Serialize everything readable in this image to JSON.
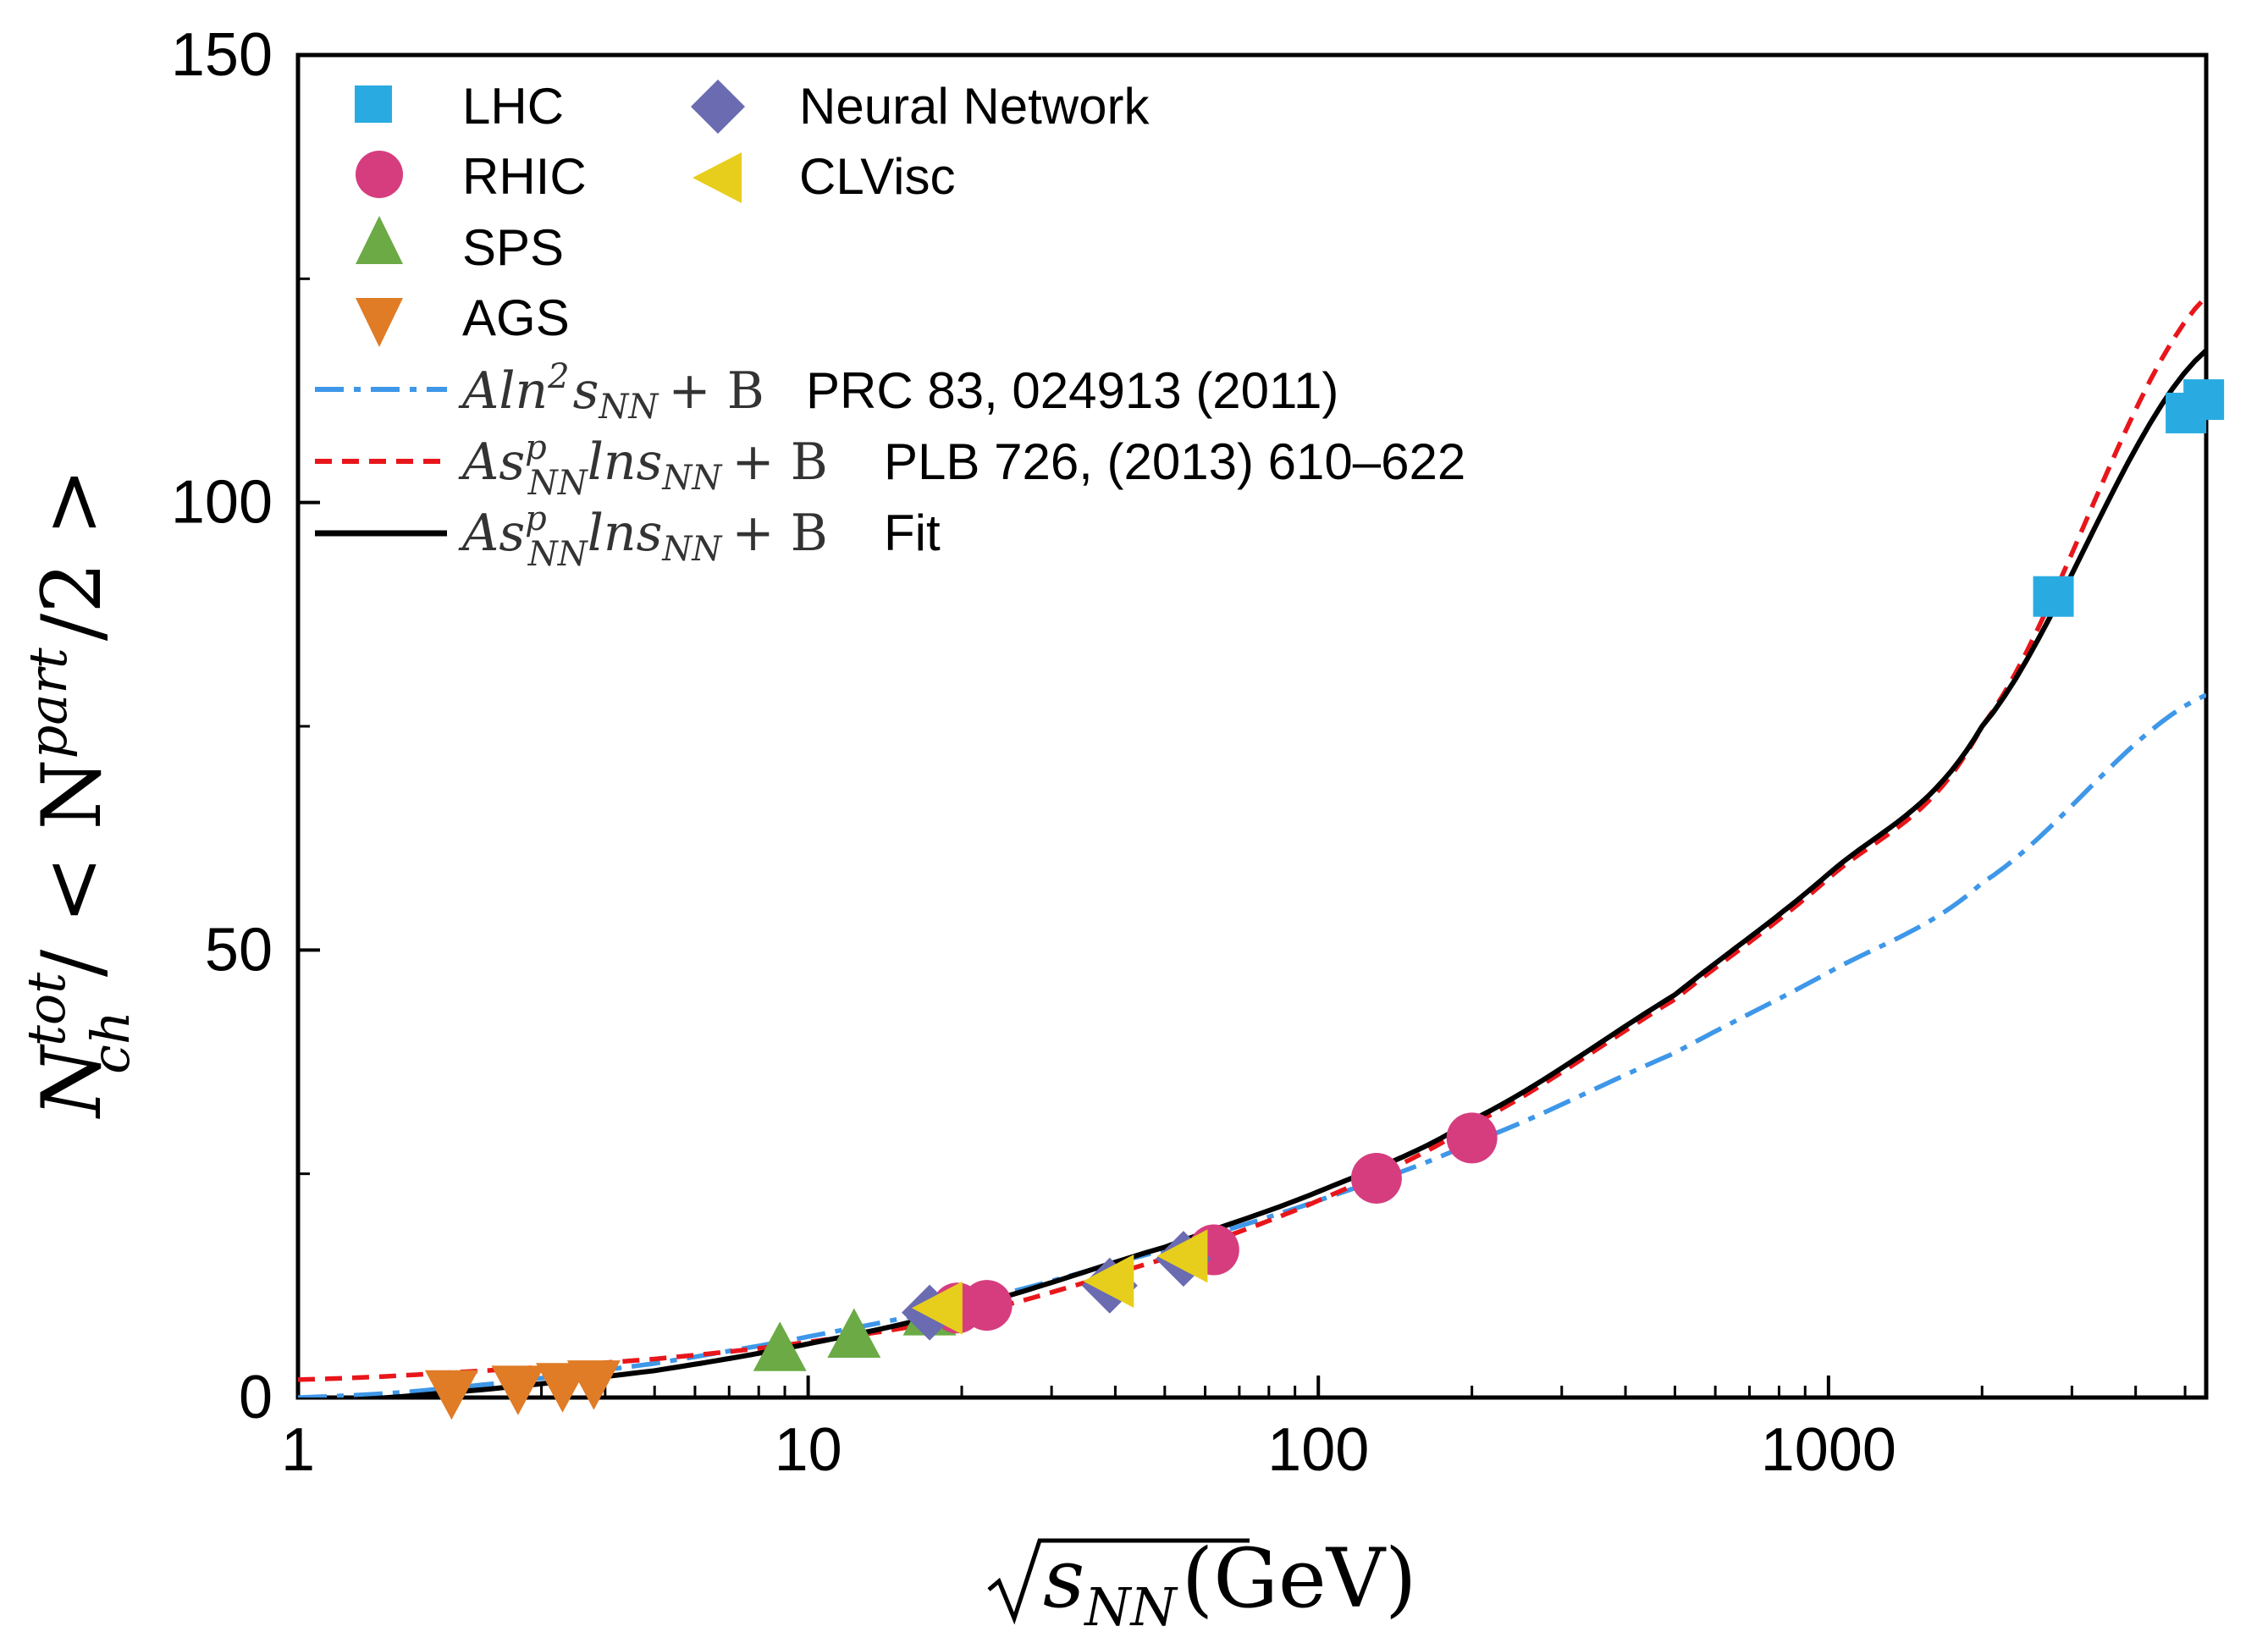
{
  "chart_data": {
    "type": "scatter",
    "x_axis": {
      "label_main": "s",
      "label_sub": "NN",
      "label_unit": "(GeV)",
      "scale": "log",
      "range": [
        1,
        5500
      ],
      "ticks": [
        1,
        10,
        100,
        1000
      ],
      "tick_labels": [
        "1",
        "10",
        "100",
        "1000"
      ]
    },
    "y_axis": {
      "label_N": "N",
      "label_sup": "tot",
      "label_sub": "ch",
      "label_rest": "/ < N",
      "label_sup2": "part",
      "label_tail": "/2 >",
      "range": [
        0,
        150
      ],
      "ticks": [
        0,
        50,
        100,
        150
      ],
      "tick_labels": [
        "0",
        "50",
        "100",
        "150"
      ]
    },
    "series": [
      {
        "name": "LHC",
        "marker": "square",
        "color": "#29ABE2",
        "points": [
          [
            2760,
            89.5
          ],
          [
            5020,
            110
          ],
          [
            5440,
            111.5
          ]
        ]
      },
      {
        "name": "RHIC",
        "marker": "circle",
        "color": "#D63D7E",
        "points": [
          [
            19.6,
            10
          ],
          [
            22.4,
            10.3
          ],
          [
            62.4,
            16.5
          ],
          [
            130,
            24.5
          ],
          [
            200,
            29
          ]
        ]
      },
      {
        "name": "SPS",
        "marker": "triangle-up",
        "color": "#6BAA45",
        "points": [
          [
            8.8,
            5.5
          ],
          [
            12.3,
            7
          ],
          [
            17.3,
            9.5
          ]
        ]
      },
      {
        "name": "AGS",
        "marker": "triangle-down",
        "color": "#E07B26",
        "points": [
          [
            2.0,
            0.5
          ],
          [
            2.7,
            1
          ],
          [
            3.3,
            1.3
          ],
          [
            3.8,
            1.6
          ]
        ]
      },
      {
        "name": "Neural Network",
        "marker": "diamond",
        "color": "#6A6BB1",
        "points": [
          [
            17.3,
            9.5
          ],
          [
            39,
            12.5
          ],
          [
            54.4,
            15.5
          ]
        ]
      },
      {
        "name": "CLVisc",
        "marker": "triangle-left",
        "color": "#E8CE1C",
        "points": [
          [
            18,
            10
          ],
          [
            39,
            13
          ],
          [
            54.4,
            15.8
          ]
        ]
      }
    ],
    "curves": [
      {
        "name": "Aln2",
        "style": "dash-dot",
        "color": "#3E97E8",
        "formula": "A ln^2 s + B",
        "x": [
          1,
          2,
          5,
          10,
          20,
          50,
          100,
          200,
          500,
          1000,
          2000,
          5500
        ],
        "y": [
          0,
          1.1,
          3.8,
          6.8,
          10.5,
          16.5,
          22,
          28.5,
          38.5,
          47.5,
          57.5,
          78.5
        ]
      },
      {
        "name": "PLB",
        "style": "dashed",
        "color": "#E8161B",
        "formula": "A s^p ln s + B",
        "x": [
          1,
          2,
          5,
          10,
          20,
          50,
          100,
          200,
          500,
          1000,
          2000,
          5500
        ],
        "y": [
          2,
          2.8,
          4.3,
          6.2,
          9.2,
          15.5,
          22,
          30.5,
          44.5,
          58,
          75,
          123
        ]
      },
      {
        "name": "Fit",
        "style": "solid",
        "color": "#000000",
        "formula": "A s^p ln s + B",
        "x": [
          1,
          2,
          5,
          10,
          20,
          50,
          100,
          200,
          500,
          1000,
          2000,
          5500
        ],
        "y": [
          -0.5,
          0.6,
          3,
          6,
          10,
          16.8,
          23,
          31,
          45,
          58.5,
          75,
          117
        ]
      }
    ],
    "legend": {
      "placement": "top-left",
      "markers": [
        "LHC",
        "RHIC",
        "SPS",
        "AGS",
        "Neural Network",
        "CLVisc"
      ],
      "lines": [
        {
          "ref": "PRC 83, 024913 (2011)",
          "formula_A": "Aln",
          "formula_sup": "2",
          "formula_s": "s",
          "formula_sub": "NN",
          "formula_tail": "+ B"
        },
        {
          "ref": "PLB 726, (2013) 610–622",
          "formula_A": "As",
          "formula_sup": "p",
          "formula_sub": "NN",
          "formula_mid": "lns",
          "formula_sub2": "NN",
          "formula_tail": "+ B"
        },
        {
          "ref": "Fit",
          "formula_A": "As",
          "formula_sup": "p",
          "formula_sub": "NN",
          "formula_mid": "lns",
          "formula_sub2": "NN",
          "formula_tail": "+ B"
        }
      ]
    }
  }
}
